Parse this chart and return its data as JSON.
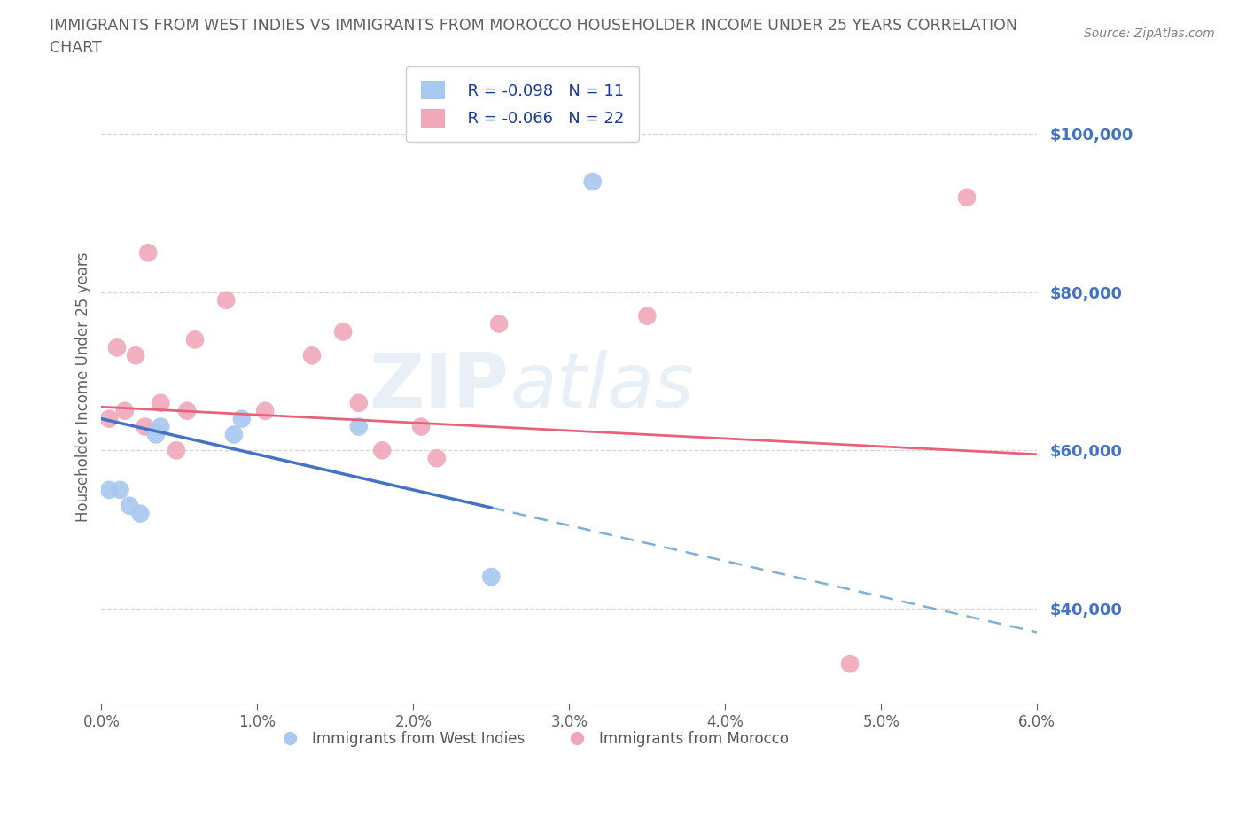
{
  "title_line1": "IMMIGRANTS FROM WEST INDIES VS IMMIGRANTS FROM MOROCCO HOUSEHOLDER INCOME UNDER 25 YEARS CORRELATION",
  "title_line2": "CHART",
  "source": "Source: ZipAtlas.com",
  "ylabel": "Householder Income Under 25 years",
  "ylabel_values": [
    40000,
    60000,
    80000,
    100000
  ],
  "xlabel_values": [
    0.0,
    1.0,
    2.0,
    3.0,
    4.0,
    5.0,
    6.0
  ],
  "xlim": [
    0.0,
    6.0
  ],
  "ylim": [
    28000,
    108000
  ],
  "west_indies_x": [
    0.05,
    0.12,
    0.18,
    0.25,
    0.35,
    0.38,
    0.85,
    0.9,
    1.65,
    2.5,
    3.15
  ],
  "west_indies_y": [
    55000,
    55000,
    53000,
    52000,
    62000,
    63000,
    62000,
    64000,
    63000,
    44000,
    94000
  ],
  "morocco_x": [
    0.05,
    0.1,
    0.15,
    0.22,
    0.28,
    0.3,
    0.38,
    0.48,
    0.55,
    0.6,
    0.8,
    1.05,
    1.35,
    1.55,
    1.65,
    1.8,
    2.05,
    2.15,
    2.55,
    3.5,
    4.8,
    5.55
  ],
  "morocco_y": [
    64000,
    73000,
    65000,
    72000,
    63000,
    85000,
    66000,
    60000,
    65000,
    74000,
    79000,
    65000,
    72000,
    75000,
    66000,
    60000,
    63000,
    59000,
    76000,
    77000,
    33000,
    92000
  ],
  "west_indies_color": "#a8c8f0",
  "morocco_color": "#f0a8b8",
  "west_indies_R": -0.098,
  "west_indies_N": 11,
  "morocco_R": -0.066,
  "morocco_N": 22,
  "trend_color_wi": "#4472c4",
  "trend_color_mo": "#e8607a",
  "wi_solid_x_end": 2.5,
  "watermark_line1": "ZIP",
  "watermark_line2": "atlas",
  "legend_label_wi": "Immigrants from West Indies",
  "legend_label_mo": "Immigrants from Morocco",
  "dashed_line_color": "#7eb0d8",
  "background_color": "#ffffff",
  "title_color": "#606060",
  "axis_label_color": "#4472c4",
  "tick_color": "#606060",
  "source_color": "#808080"
}
